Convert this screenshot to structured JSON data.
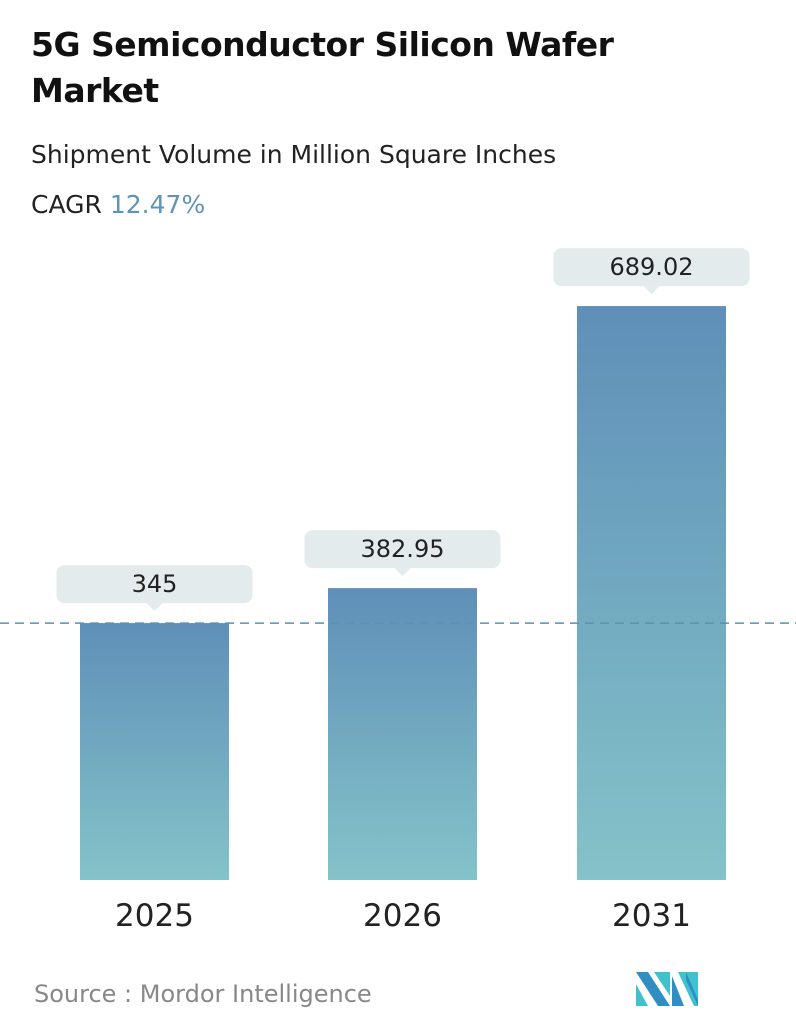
{
  "title": "5G Semiconductor Silicon Wafer Market",
  "subtitle": "Shipment Volume in Million Square Inches",
  "cagr_label": "CAGR",
  "cagr_value": "12.47%",
  "source": "Source :  Mordor Intelligence",
  "colors": {
    "bar_top": "#5f8fb8",
    "bar_bottom": "#84c3c9",
    "label_bg": "#e3ebed",
    "cagr": "#5f93b8",
    "dashed_line": "#5f8fb0"
  },
  "chart_data": {
    "type": "bar",
    "categories": [
      "2025",
      "2026",
      "2031"
    ],
    "values": [
      345,
      382.95,
      689.02
    ],
    "value_labels": [
      "345",
      "382.95",
      "689.02"
    ],
    "reference_line": 345,
    "grid": false
  }
}
